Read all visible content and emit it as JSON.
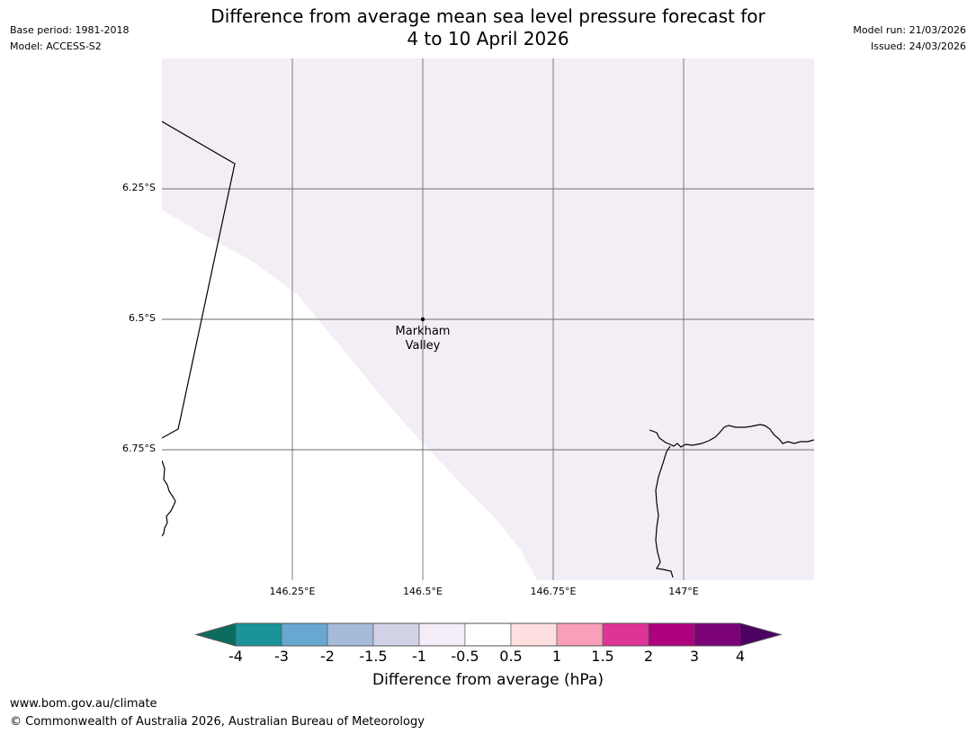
{
  "meta": {
    "base_period": "Base period: 1981-2018",
    "model": "Model: ACCESS-S2",
    "model_run": "Model run: 21/03/2026",
    "issued": "Issued: 24/03/2026"
  },
  "title": {
    "line1": "Difference from average mean sea level pressure forecast for",
    "line2": "4 to 10 April 2026"
  },
  "map": {
    "lat_labels": [
      "6.25°S",
      "6.5°S",
      "6.75°S"
    ],
    "lon_labels": [
      "146.25°E",
      "146.5°E",
      "146.75°E",
      "147°E"
    ],
    "location": {
      "name_line1": "Markham",
      "name_line2": "Valley"
    },
    "colors": {
      "shaded_region": "#f3edf5",
      "gridline": "#6e6e6e",
      "coastline": "#000000"
    }
  },
  "colorbar": {
    "ticks": [
      "-4",
      "-3",
      "-2",
      "-1.5",
      "-1",
      "-0.5",
      "0.5",
      "1",
      "1.5",
      "2",
      "3",
      "4"
    ],
    "under_color": "#0b6d60",
    "over_color": "#4b0062",
    "bins": [
      {
        "color": "#1a9399"
      },
      {
        "color": "#68a8d0"
      },
      {
        "color": "#a6bad9"
      },
      {
        "color": "#d1d2e5"
      },
      {
        "color": "#f4ecf7"
      },
      {
        "color": "#ffffff"
      },
      {
        "color": "#fde0df"
      },
      {
        "color": "#f99fb7"
      },
      {
        "color": "#de3497"
      },
      {
        "color": "#ad017e"
      },
      {
        "color": "#7a0177"
      }
    ],
    "label": "Difference from average (hPa)"
  },
  "footer": {
    "url": "www.bom.gov.au/climate",
    "copyright": "© Commonwealth of Australia 2026, Australian Bureau of Meteorology"
  }
}
